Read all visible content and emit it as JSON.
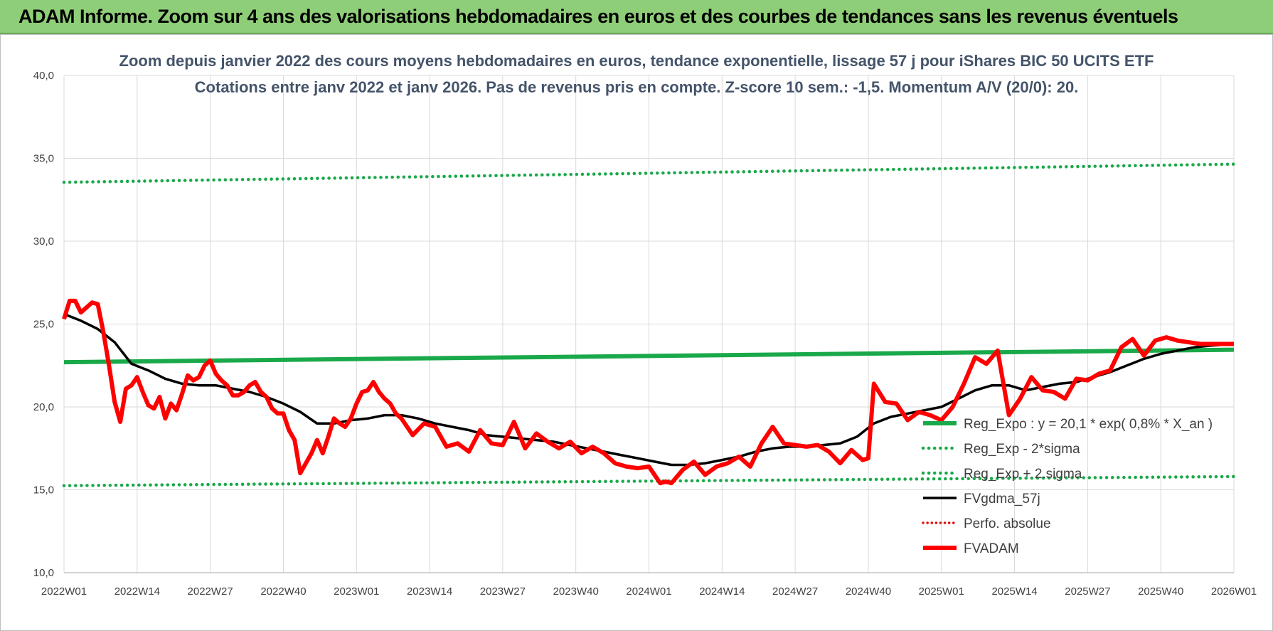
{
  "banner": {
    "text": "ADAM Informe. Zoom sur 4 ans des valorisations hebdomadaires en euros et des courbes de tendances sans les revenus éventuels"
  },
  "colors": {
    "banner_bg": "#8fce78",
    "trend_green": "#1aa94a",
    "dotted_green": "#1aa94a",
    "smooth_black": "#000000",
    "price_red": "#ff0000",
    "perf_red": "#e01010",
    "grid": "#d9d9d9"
  },
  "chart_data": {
    "type": "line",
    "title": "Zoom depuis janvier 2022 des cours moyens hebdomadaires en euros, tendance exponentielle, lissage 57 j pour iShares BIC 50 UCITS ETF",
    "subtitle": "Cotations entre janv 2022 et janv 2026. Pas de revenus pris en compte. Z-score 10 sem.: -1,5. Momentum A/V (20/0): 20.",
    "xlabel": "",
    "ylabel": "",
    "ylim": [
      10,
      40
    ],
    "xlim": [
      0,
      208
    ],
    "grid": true,
    "legend_position": "bottom-right",
    "y_ticks": [
      "10,0",
      "15,0",
      "20,0",
      "25,0",
      "30,0",
      "35,0",
      "40,0"
    ],
    "y_tick_values": [
      10,
      15,
      20,
      25,
      30,
      35,
      40
    ],
    "x_ticks": [
      "2022W01",
      "2022W14",
      "2022W27",
      "2022W40",
      "2023W01",
      "2023W14",
      "2023W27",
      "2023W40",
      "2024W01",
      "2024W14",
      "2024W27",
      "2024W40",
      "2025W01",
      "2025W14",
      "2025W27",
      "2025W40",
      "2026W01"
    ],
    "x_tick_values": [
      0,
      13,
      26,
      39,
      52,
      65,
      78,
      91,
      104,
      117,
      130,
      143,
      156,
      169,
      182,
      195,
      208
    ],
    "series": [
      {
        "name": "Reg_Expo : y = 20,1 * exp( 0,8% * X_an )",
        "style": "solid-thick-green",
        "x": [
          0,
          208
        ],
        "y": [
          22.7,
          23.45
        ]
      },
      {
        "name": "Reg_Exp - 2*sigma",
        "style": "dotted-green",
        "x": [
          0,
          208
        ],
        "y": [
          15.25,
          15.8
        ]
      },
      {
        "name": "Reg_Exp + 2.sigma",
        "style": "dotted-green",
        "x": [
          0,
          208
        ],
        "y": [
          33.55,
          34.65
        ]
      },
      {
        "name": "FVgdma_57j",
        "style": "solid-black",
        "x": [
          0,
          3,
          6,
          9,
          12,
          15,
          18,
          21,
          24,
          27,
          30,
          33,
          36,
          39,
          42,
          45,
          48,
          51,
          54,
          57,
          60,
          63,
          66,
          69,
          72,
          75,
          78,
          81,
          84,
          87,
          90,
          93,
          96,
          99,
          102,
          105,
          108,
          111,
          114,
          117,
          120,
          123,
          126,
          129,
          132,
          135,
          138,
          141,
          144,
          147,
          150,
          153,
          156,
          159,
          162,
          165,
          168,
          171,
          174,
          177,
          180,
          183,
          186,
          189,
          192,
          195,
          198,
          201,
          204,
          208
        ],
        "y": [
          25.6,
          25.2,
          24.7,
          23.9,
          22.6,
          22.2,
          21.7,
          21.4,
          21.3,
          21.3,
          21.1,
          20.9,
          20.6,
          20.2,
          19.7,
          19.0,
          19.0,
          19.2,
          19.3,
          19.5,
          19.5,
          19.3,
          19.0,
          18.8,
          18.6,
          18.3,
          18.2,
          18.1,
          18.0,
          17.9,
          17.7,
          17.5,
          17.3,
          17.1,
          16.9,
          16.7,
          16.5,
          16.5,
          16.6,
          16.8,
          17.0,
          17.3,
          17.5,
          17.6,
          17.6,
          17.7,
          17.8,
          18.2,
          19.0,
          19.4,
          19.6,
          19.8,
          20.0,
          20.5,
          21.0,
          21.3,
          21.3,
          21.0,
          21.2,
          21.4,
          21.5,
          21.8,
          22.1,
          22.5,
          22.9,
          23.2,
          23.4,
          23.6,
          23.7,
          23.8
        ]
      },
      {
        "name": "Perfo. absolue",
        "style": "dotted-red",
        "x": [],
        "y": []
      },
      {
        "name": "FVADAM",
        "style": "solid-thick-red",
        "x": [
          0,
          1,
          2,
          3,
          4,
          5,
          6,
          7,
          8,
          9,
          10,
          11,
          12,
          13,
          14,
          15,
          16,
          17,
          18,
          19,
          20,
          21,
          22,
          23,
          24,
          25,
          26,
          27,
          28,
          29,
          30,
          31,
          32,
          33,
          34,
          35,
          36,
          37,
          38,
          39,
          40,
          41,
          42,
          43,
          44,
          45,
          46,
          47,
          48,
          49,
          50,
          51,
          52,
          53,
          54,
          55,
          56,
          57,
          58,
          59,
          60,
          62,
          64,
          66,
          68,
          70,
          72,
          74,
          76,
          78,
          80,
          82,
          84,
          86,
          88,
          90,
          92,
          94,
          96,
          98,
          100,
          102,
          104,
          106,
          107,
          108,
          110,
          112,
          114,
          116,
          118,
          120,
          122,
          124,
          126,
          128,
          130,
          132,
          134,
          136,
          138,
          140,
          142,
          143,
          144,
          146,
          148,
          150,
          152,
          154,
          156,
          158,
          160,
          162,
          164,
          166,
          168,
          170,
          172,
          174,
          176,
          178,
          180,
          182,
          184,
          186,
          188,
          190,
          192,
          194,
          196,
          198,
          200,
          202,
          204,
          206,
          208
        ],
        "y": [
          25.3,
          26.4,
          26.4,
          25.7,
          26.0,
          26.3,
          26.2,
          24.5,
          22.5,
          20.3,
          19.1,
          21.1,
          21.3,
          21.8,
          20.9,
          20.1,
          19.9,
          20.6,
          19.3,
          20.2,
          19.8,
          20.8,
          21.9,
          21.6,
          21.8,
          22.5,
          22.8,
          22.0,
          21.6,
          21.3,
          20.7,
          20.7,
          20.9,
          21.3,
          21.5,
          20.9,
          20.6,
          19.9,
          19.6,
          19.6,
          18.6,
          18.0,
          16.0,
          16.6,
          17.2,
          18.0,
          17.2,
          18.2,
          19.3,
          19.0,
          18.8,
          19.3,
          20.2,
          20.9,
          21.0,
          21.5,
          20.9,
          20.5,
          20.2,
          19.6,
          19.3,
          18.3,
          19.0,
          18.8,
          17.6,
          17.8,
          17.3,
          18.6,
          17.8,
          17.7,
          19.1,
          17.5,
          18.4,
          17.9,
          17.5,
          17.9,
          17.2,
          17.6,
          17.2,
          16.6,
          16.4,
          16.3,
          16.4,
          15.4,
          15.5,
          15.4,
          16.2,
          16.7,
          15.9,
          16.4,
          16.6,
          17.0,
          16.4,
          17.8,
          18.8,
          17.8,
          17.7,
          17.6,
          17.7,
          17.3,
          16.6,
          17.4,
          16.8,
          16.9,
          21.4,
          20.3,
          20.2,
          19.2,
          19.7,
          19.5,
          19.2,
          20.0,
          21.4,
          23.0,
          22.6,
          23.4,
          19.5,
          20.5,
          21.8,
          21.0,
          20.9,
          20.5,
          21.7,
          21.6,
          22.0,
          22.2,
          23.6,
          24.1,
          23.1,
          24.0,
          24.2,
          24.0,
          23.9,
          23.8,
          23.8,
          23.8,
          23.8
        ]
      }
    ]
  }
}
